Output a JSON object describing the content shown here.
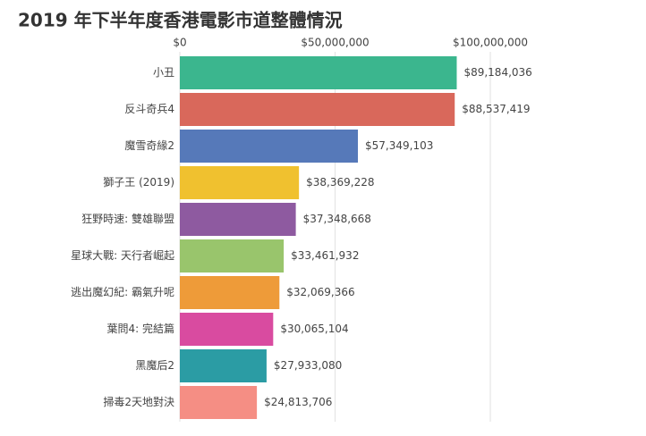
{
  "chart_data": {
    "type": "bar",
    "orientation": "horizontal",
    "title": "2019 年下半年度香港電影市道整體情況",
    "categories": [
      "小丑",
      "反斗奇兵4",
      "魔雪奇緣2",
      "獅子王 (2019)",
      "狂野時速: 雙雄聯盟",
      "星球大戰: 天行者崛起",
      "逃出魔幻紀: 霸氣升呢",
      "葉問4: 完結篇",
      "黑魔后2",
      "掃毒2天地對決"
    ],
    "values": [
      89184036,
      88537419,
      57349103,
      38369228,
      37348668,
      33461932,
      32069366,
      30065104,
      27933080,
      24813706
    ],
    "value_labels": [
      "$89,184,036",
      "$88,537,419",
      "$57,349,103",
      "$38,369,228",
      "$37,348,668",
      "$33,461,932",
      "$32,069,366",
      "$30,065,104",
      "$27,933,080",
      "$24,813,706"
    ],
    "colors": [
      "#3bb68e",
      "#d9685b",
      "#5679b9",
      "#f0c12f",
      "#8e5aa0",
      "#99c56c",
      "#ee9b39",
      "#d94ba0",
      "#2b9ca4",
      "#f58e84"
    ],
    "xlim": [
      0,
      100000000
    ],
    "xticks": [
      {
        "value": 0,
        "label": "$0"
      },
      {
        "value": 50000000,
        "label": "$50,000,000"
      },
      {
        "value": 100000000,
        "label": "$100,000,000"
      }
    ],
    "grid": true
  }
}
